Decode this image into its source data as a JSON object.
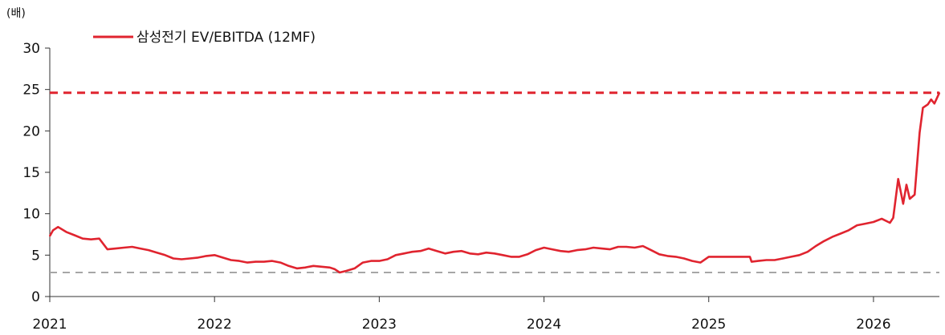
{
  "chart_data": {
    "type": "line",
    "unit_label": "(배)",
    "title": "",
    "xlabel": "",
    "ylabel": "(배)",
    "ylim": [
      0,
      30
    ],
    "yticks": [
      0,
      5,
      10,
      15,
      20,
      25,
      30
    ],
    "xlim": [
      2021.0,
      2026.4
    ],
    "xticks": [
      "2021",
      "2022",
      "2023",
      "2024",
      "2025",
      "2026"
    ],
    "grid": false,
    "legend_placement": "top-left",
    "colors": {
      "series": "#e0242f",
      "upper_line": "#e0242f",
      "lower_line": "#a6a6a6"
    },
    "series": [
      {
        "name": "삼성전기 EV/EBITDA (12MF)",
        "x": [
          2021.0,
          2021.02,
          2021.05,
          2021.1,
          2021.15,
          2021.2,
          2021.25,
          2021.3,
          2021.35,
          2021.4,
          2021.45,
          2021.5,
          2021.55,
          2021.6,
          2021.65,
          2021.7,
          2021.75,
          2021.8,
          2021.85,
          2021.9,
          2021.95,
          2022.0,
          2022.05,
          2022.1,
          2022.15,
          2022.2,
          2022.25,
          2022.3,
          2022.35,
          2022.4,
          2022.45,
          2022.5,
          2022.55,
          2022.6,
          2022.65,
          2022.7,
          2022.73,
          2022.76,
          2022.8,
          2022.85,
          2022.9,
          2022.95,
          2023.0,
          2023.05,
          2023.1,
          2023.15,
          2023.2,
          2023.25,
          2023.3,
          2023.35,
          2023.4,
          2023.45,
          2023.5,
          2023.55,
          2023.6,
          2023.65,
          2023.7,
          2023.75,
          2023.8,
          2023.85,
          2023.9,
          2023.95,
          2024.0,
          2024.05,
          2024.1,
          2024.15,
          2024.2,
          2024.25,
          2024.3,
          2024.35,
          2024.4,
          2024.45,
          2024.5,
          2024.55,
          2024.6,
          2024.65,
          2024.7,
          2024.75,
          2024.8,
          2024.85,
          2024.9,
          2024.95,
          2025.0,
          2025.05,
          2025.1,
          2025.15,
          2025.2,
          2025.25,
          2025.26,
          2025.3,
          2025.35,
          2025.4,
          2025.45,
          2025.5,
          2025.55,
          2025.6,
          2025.65,
          2025.7,
          2025.75,
          2025.8,
          2025.85,
          2025.9,
          2025.95,
          2026.0,
          2026.05,
          2026.1,
          2026.12,
          2026.15,
          2026.18,
          2026.2,
          2026.22,
          2026.25,
          2026.28,
          2026.3,
          2026.33,
          2026.35,
          2026.37,
          2026.4
        ],
        "values": [
          7.3,
          8.0,
          8.4,
          7.8,
          7.4,
          7.0,
          6.9,
          7.0,
          5.7,
          5.8,
          5.9,
          6.0,
          5.8,
          5.6,
          5.3,
          5.0,
          4.6,
          4.5,
          4.6,
          4.7,
          4.9,
          5.0,
          4.7,
          4.4,
          4.3,
          4.1,
          4.2,
          4.2,
          4.3,
          4.1,
          3.7,
          3.4,
          3.5,
          3.7,
          3.6,
          3.5,
          3.3,
          2.9,
          3.1,
          3.4,
          4.1,
          4.3,
          4.3,
          4.5,
          5.0,
          5.2,
          5.4,
          5.5,
          5.8,
          5.5,
          5.2,
          5.4,
          5.5,
          5.2,
          5.1,
          5.3,
          5.2,
          5.0,
          4.8,
          4.8,
          5.1,
          5.6,
          5.9,
          5.7,
          5.5,
          5.4,
          5.6,
          5.7,
          5.9,
          5.8,
          5.7,
          6.0,
          6.0,
          5.9,
          6.1,
          5.6,
          5.1,
          4.9,
          4.8,
          4.6,
          4.3,
          4.1,
          4.8,
          4.8,
          4.8,
          4.8,
          4.8,
          4.8,
          4.2,
          4.3,
          4.4,
          4.4,
          4.6,
          4.8,
          5.0,
          5.4,
          6.1,
          6.7,
          7.2,
          7.6,
          8.0,
          8.6,
          8.8,
          9.0,
          9.4,
          8.9,
          9.5,
          14.2,
          11.2,
          13.5,
          11.8,
          12.3,
          19.8,
          22.8,
          23.2,
          23.8,
          23.3,
          24.6
        ]
      }
    ],
    "reference_lines": [
      {
        "y": 24.6,
        "style": "dashed",
        "color_key": "upper_line"
      },
      {
        "y": 2.9,
        "style": "dashed",
        "color_key": "lower_line"
      }
    ]
  }
}
